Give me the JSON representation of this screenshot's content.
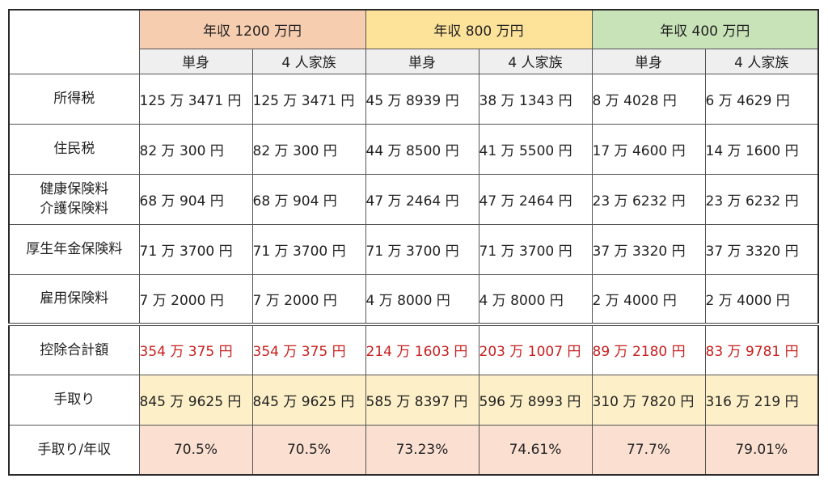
{
  "groups": [
    {
      "label": "年収 1200 万円"
    },
    {
      "label": "年収 800 万円"
    },
    {
      "label": "年収 400 万円"
    }
  ],
  "subheaders": [
    "単身",
    "4 人家族",
    "単身",
    "4 人家族",
    "単身",
    "4 人家族"
  ],
  "rows": [
    {
      "label": "所得税",
      "values": [
        "125 万 3471 円",
        "125 万 3471 円",
        "45 万 8939 円",
        "38 万 1343 円",
        "8 万 4028 円",
        "6 万 4629 円"
      ]
    },
    {
      "label": "住民税",
      "values": [
        "82 万 300 円",
        "82 万 300 円",
        "44 万 8500 円",
        "41 万 5500 円",
        "17 万 4600 円",
        "14 万 1600 円"
      ]
    },
    {
      "label_line1": "健康保険料",
      "label_line2": "介護保険料",
      "values": [
        "68 万 904 円",
        "68 万 904 円",
        "47 万 2464 円",
        "47 万 2464 円",
        "23 万 6232 円",
        "23 万 6232 円"
      ]
    },
    {
      "label": "厚生年金保険料",
      "values": [
        "71 万 3700 円",
        "71 万 3700 円",
        "71 万 3700 円",
        "71 万 3700 円",
        "37 万 3320 円",
        "37 万 3320 円"
      ]
    },
    {
      "label": "雇用保険料",
      "values": [
        "7 万 2000 円",
        "7 万 2000 円",
        "4 万 8000 円",
        "4 万 8000 円",
        "2 万 4000 円",
        "2 万 4000 円"
      ]
    },
    {
      "label": "控除合計額",
      "values": [
        "354 万 375 円",
        "354 万 375 円",
        "214 万 1603 円",
        "203 万 1007 円",
        "89 万 2180 円",
        "83 万 9781 円"
      ]
    },
    {
      "label": "手取り",
      "values": [
        "845 万 9625 円",
        "845 万 9625 円",
        "585 万 8397 円",
        "596 万 8993 円",
        "310 万 7820 円",
        "316 万 219 円"
      ]
    },
    {
      "label": "手取り/年収",
      "values": [
        "70.5%",
        "70.5%",
        "73.23%",
        "74.61%",
        "77.7%",
        "79.01%"
      ]
    }
  ],
  "colors": {
    "group_1200": "#f7cdb0",
    "group_800": "#fde39a",
    "group_400": "#c8e3b8",
    "deduction_total_text": "#c81e1e",
    "takehome_fill": "#fdf0c8",
    "ratio_fill": "#fbe0d2"
  }
}
